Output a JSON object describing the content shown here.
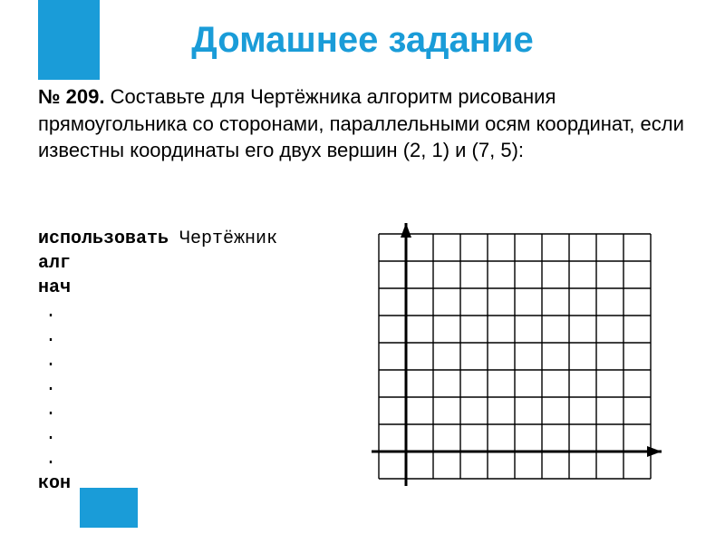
{
  "accent_color": "#1a9cd8",
  "title": "Домашнее задание",
  "task": {
    "number": "№ 209.",
    "text": "Составьте для Чертёжника алгоритм рисования прямоугольника со сторонами, параллельными осям координат, если известны координаты его двух вершин (2, 1) и (7, 5):"
  },
  "algorithm": {
    "use_kw": "использовать",
    "use_arg": "Чертёжник",
    "lines": [
      "алг",
      "нач"
    ],
    "dot_count": 7,
    "end_kw": "кон"
  },
  "grid": {
    "cols": 10,
    "rows": 9,
    "cell": 30,
    "axis_x_col": 1,
    "axis_y_row": 8,
    "line_color": "#000000",
    "grid_stroke": 1.4,
    "axis_stroke": 3,
    "arrow": 10
  }
}
